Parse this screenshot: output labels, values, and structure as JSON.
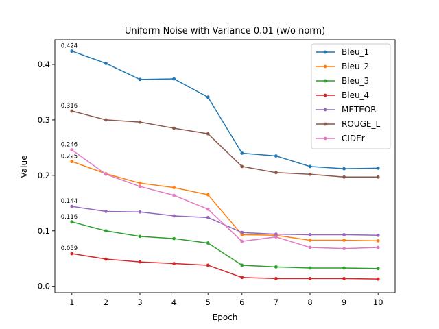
{
  "chart_data": {
    "type": "line",
    "title": "Uniform Noise with Variance 0.01 (w/o norm)",
    "xlabel": "Epoch",
    "ylabel": "Value",
    "x": [
      1,
      2,
      3,
      4,
      5,
      6,
      7,
      8,
      9,
      10
    ],
    "xlim": [
      0.5,
      10.5
    ],
    "ylim": [
      -0.0115,
      0.4445
    ],
    "xticks": [
      "1",
      "2",
      "3",
      "4",
      "5",
      "6",
      "7",
      "8",
      "9",
      "10"
    ],
    "yticks": [
      "0.0",
      "0.1",
      "0.2",
      "0.3",
      "0.4"
    ],
    "grid": false,
    "legend_position": "top-right",
    "series": [
      {
        "name": "Bleu_1",
        "color": "#1f77b4",
        "values": [
          0.424,
          0.402,
          0.373,
          0.374,
          0.341,
          0.24,
          0.235,
          0.216,
          0.212,
          0.213
        ],
        "first_label": "0.424"
      },
      {
        "name": "Bleu_2",
        "color": "#ff7f0e",
        "values": [
          0.225,
          0.203,
          0.186,
          0.178,
          0.165,
          0.093,
          0.092,
          0.083,
          0.083,
          0.082
        ],
        "first_label": "0.225"
      },
      {
        "name": "Bleu_3",
        "color": "#2ca02c",
        "values": [
          0.116,
          0.1,
          0.09,
          0.086,
          0.078,
          0.038,
          0.035,
          0.033,
          0.033,
          0.032
        ],
        "first_label": "0.116"
      },
      {
        "name": "Bleu_4",
        "color": "#d62728",
        "values": [
          0.059,
          0.049,
          0.044,
          0.041,
          0.038,
          0.016,
          0.014,
          0.014,
          0.014,
          0.013
        ],
        "first_label": "0.059"
      },
      {
        "name": "METEOR",
        "color": "#9467bd",
        "values": [
          0.144,
          0.135,
          0.134,
          0.127,
          0.124,
          0.097,
          0.094,
          0.093,
          0.093,
          0.092
        ],
        "first_label": "0.144"
      },
      {
        "name": "ROUGE_L",
        "color": "#8c564b",
        "values": [
          0.316,
          0.3,
          0.296,
          0.285,
          0.275,
          0.216,
          0.205,
          0.202,
          0.197,
          0.197
        ],
        "first_label": "0.316"
      },
      {
        "name": "CIDEr",
        "color": "#e377c2",
        "values": [
          0.246,
          0.202,
          0.18,
          0.164,
          0.139,
          0.081,
          0.089,
          0.07,
          0.068,
          0.07
        ],
        "first_label": "0.246"
      }
    ]
  }
}
